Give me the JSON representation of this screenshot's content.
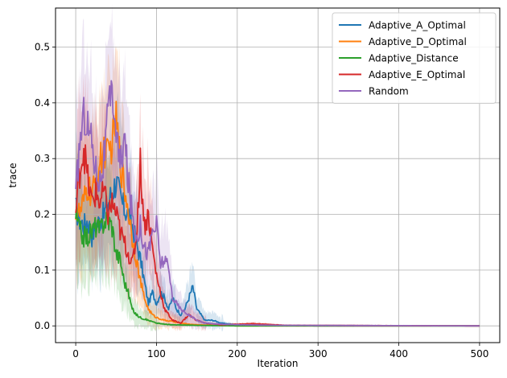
{
  "chart_data": {
    "type": "line",
    "title": "",
    "xlabel": "Iteration",
    "ylabel": "trace",
    "xlim": [
      -25,
      525
    ],
    "ylim": [
      -0.03,
      0.57
    ],
    "xticks": [
      0,
      100,
      200,
      300,
      400,
      500
    ],
    "yticks": [
      0.0,
      0.1,
      0.2,
      0.3,
      0.4,
      0.5
    ],
    "xtick_labels": [
      "0",
      "100",
      "200",
      "300",
      "400",
      "500"
    ],
    "ytick_labels": [
      "0.0",
      "0.1",
      "0.2",
      "0.3",
      "0.4",
      "0.5"
    ],
    "grid": true,
    "legend_position": "top-right",
    "shaded_band": "variability band around each series",
    "series": [
      {
        "name": "Adaptive_A_Optimal",
        "color": "#1f77b4",
        "points": [
          [
            0,
            0.21
          ],
          [
            5,
            0.19
          ],
          [
            10,
            0.18
          ],
          [
            15,
            0.19
          ],
          [
            20,
            0.16
          ],
          [
            25,
            0.18
          ],
          [
            30,
            0.19
          ],
          [
            35,
            0.2
          ],
          [
            40,
            0.22
          ],
          [
            45,
            0.24
          ],
          [
            50,
            0.26
          ],
          [
            55,
            0.23
          ],
          [
            60,
            0.21
          ],
          [
            65,
            0.2
          ],
          [
            70,
            0.18
          ],
          [
            75,
            0.15
          ],
          [
            80,
            0.12
          ],
          [
            85,
            0.08
          ],
          [
            90,
            0.04
          ],
          [
            95,
            0.06
          ],
          [
            100,
            0.04
          ],
          [
            105,
            0.06
          ],
          [
            110,
            0.05
          ],
          [
            115,
            0.03
          ],
          [
            120,
            0.05
          ],
          [
            125,
            0.03
          ],
          [
            130,
            0.02
          ],
          [
            135,
            0.03
          ],
          [
            140,
            0.05
          ],
          [
            145,
            0.07
          ],
          [
            150,
            0.03
          ],
          [
            155,
            0.02
          ],
          [
            160,
            0.01
          ],
          [
            170,
            0.01
          ],
          [
            180,
            0.005
          ],
          [
            200,
            0.002
          ],
          [
            230,
            0.001
          ],
          [
            300,
            0.0
          ],
          [
            500,
            0.0
          ]
        ]
      },
      {
        "name": "Adaptive_D_Optimal",
        "color": "#ff7f0e",
        "points": [
          [
            0,
            0.21
          ],
          [
            5,
            0.2
          ],
          [
            10,
            0.22
          ],
          [
            15,
            0.25
          ],
          [
            20,
            0.23
          ],
          [
            25,
            0.26
          ],
          [
            30,
            0.29
          ],
          [
            35,
            0.32
          ],
          [
            40,
            0.3
          ],
          [
            45,
            0.33
          ],
          [
            50,
            0.37
          ],
          [
            55,
            0.3
          ],
          [
            60,
            0.25
          ],
          [
            65,
            0.21
          ],
          [
            70,
            0.16
          ],
          [
            75,
            0.12
          ],
          [
            80,
            0.08
          ],
          [
            85,
            0.05
          ],
          [
            90,
            0.03
          ],
          [
            95,
            0.02
          ],
          [
            100,
            0.015
          ],
          [
            110,
            0.01
          ],
          [
            120,
            0.008
          ],
          [
            130,
            0.005
          ],
          [
            140,
            0.003
          ],
          [
            150,
            0.002
          ],
          [
            170,
            0.001
          ],
          [
            200,
            0.0
          ],
          [
            500,
            0.0
          ]
        ]
      },
      {
        "name": "Adaptive_Distance",
        "color": "#2ca02c",
        "points": [
          [
            0,
            0.2
          ],
          [
            5,
            0.17
          ],
          [
            10,
            0.16
          ],
          [
            15,
            0.16
          ],
          [
            20,
            0.17
          ],
          [
            25,
            0.18
          ],
          [
            30,
            0.17
          ],
          [
            35,
            0.19
          ],
          [
            40,
            0.19
          ],
          [
            45,
            0.18
          ],
          [
            50,
            0.13
          ],
          [
            55,
            0.12
          ],
          [
            60,
            0.08
          ],
          [
            65,
            0.06
          ],
          [
            70,
            0.03
          ],
          [
            75,
            0.02
          ],
          [
            80,
            0.015
          ],
          [
            90,
            0.01
          ],
          [
            100,
            0.005
          ],
          [
            110,
            0.003
          ],
          [
            120,
            0.002
          ],
          [
            150,
            0.001
          ],
          [
            200,
            0.0
          ],
          [
            500,
            0.0
          ]
        ]
      },
      {
        "name": "Adaptive_E_Optimal",
        "color": "#d62728",
        "points": [
          [
            0,
            0.2
          ],
          [
            5,
            0.28
          ],
          [
            10,
            0.32
          ],
          [
            15,
            0.26
          ],
          [
            20,
            0.22
          ],
          [
            25,
            0.24
          ],
          [
            30,
            0.22
          ],
          [
            35,
            0.24
          ],
          [
            40,
            0.2
          ],
          [
            45,
            0.22
          ],
          [
            50,
            0.2
          ],
          [
            55,
            0.17
          ],
          [
            60,
            0.15
          ],
          [
            65,
            0.13
          ],
          [
            70,
            0.11
          ],
          [
            75,
            0.16
          ],
          [
            80,
            0.29
          ],
          [
            85,
            0.18
          ],
          [
            90,
            0.2
          ],
          [
            95,
            0.14
          ],
          [
            100,
            0.09
          ],
          [
            105,
            0.06
          ],
          [
            110,
            0.03
          ],
          [
            115,
            0.02
          ],
          [
            120,
            0.01
          ],
          [
            130,
            0.005
          ],
          [
            140,
            0.02
          ],
          [
            150,
            0.01
          ],
          [
            160,
            0.005
          ],
          [
            180,
            0.002
          ],
          [
            220,
            0.004
          ],
          [
            260,
            0.001
          ],
          [
            500,
            0.0
          ]
        ]
      },
      {
        "name": "Random",
        "color": "#9467bd",
        "points": [
          [
            0,
            0.23
          ],
          [
            5,
            0.33
          ],
          [
            10,
            0.38
          ],
          [
            15,
            0.36
          ],
          [
            20,
            0.33
          ],
          [
            25,
            0.28
          ],
          [
            30,
            0.26
          ],
          [
            35,
            0.3
          ],
          [
            40,
            0.38
          ],
          [
            45,
            0.42
          ],
          [
            50,
            0.35
          ],
          [
            55,
            0.28
          ],
          [
            60,
            0.34
          ],
          [
            65,
            0.26
          ],
          [
            70,
            0.2
          ],
          [
            75,
            0.16
          ],
          [
            80,
            0.18
          ],
          [
            85,
            0.14
          ],
          [
            90,
            0.13
          ],
          [
            95,
            0.17
          ],
          [
            100,
            0.18
          ],
          [
            105,
            0.11
          ],
          [
            110,
            0.12
          ],
          [
            115,
            0.1
          ],
          [
            120,
            0.05
          ],
          [
            130,
            0.03
          ],
          [
            140,
            0.02
          ],
          [
            150,
            0.01
          ],
          [
            160,
            0.005
          ],
          [
            180,
            0.003
          ],
          [
            200,
            0.002
          ],
          [
            250,
            0.001
          ],
          [
            500,
            0.0
          ]
        ]
      }
    ]
  }
}
